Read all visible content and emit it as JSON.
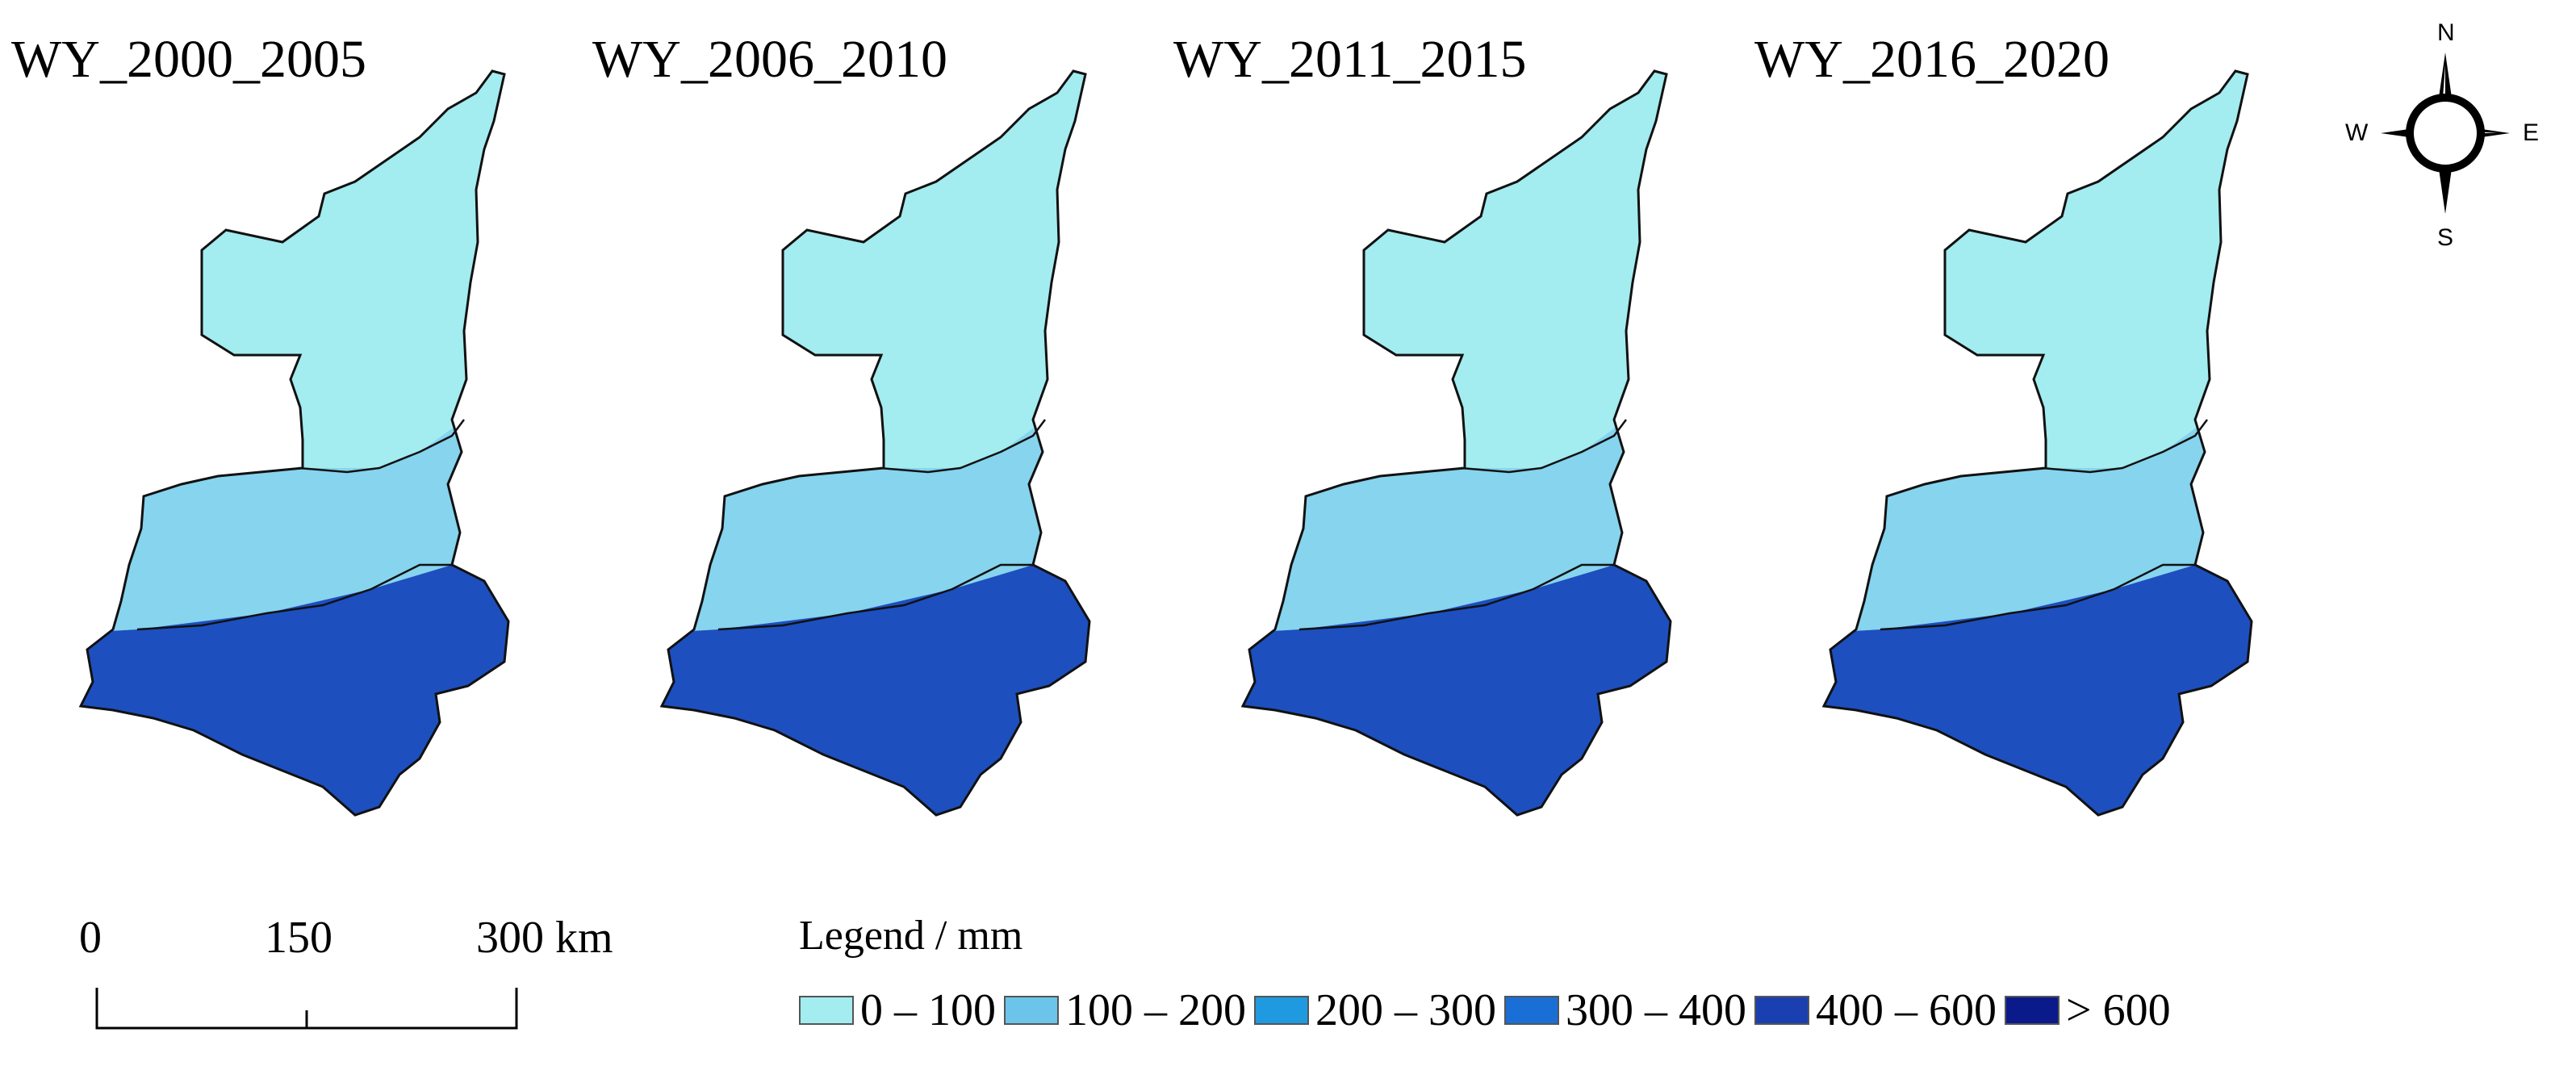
{
  "panels": [
    {
      "title": "WY_2000_2005"
    },
    {
      "title": "WY_2006_2010"
    },
    {
      "title": "WY_2011_2015"
    },
    {
      "title": "WY_2016_2020"
    }
  ],
  "compass": {
    "north": "N",
    "south": "S",
    "east": "E",
    "west": "W"
  },
  "scale_bar": {
    "labels": [
      "0",
      "150",
      "300 km"
    ]
  },
  "legend": {
    "title": "Legend / mm",
    "items": [
      {
        "label": "0 – 100",
        "color": "#a3ecf0"
      },
      {
        "label": "100 – 200",
        "color": "#6cc4ea"
      },
      {
        "label": "200 – 300",
        "color": "#1f9ae0"
      },
      {
        "label": "300 – 400",
        "color": "#1a6fd6"
      },
      {
        "label": "400 – 600",
        "color": "#1a3fb0"
      },
      {
        "label": "> 600",
        "color": "#0a1a8a"
      }
    ]
  },
  "zone_colors": {
    "north": "#a3ecf0",
    "middle": "#86d4ee",
    "south": "#1d4fbf"
  }
}
